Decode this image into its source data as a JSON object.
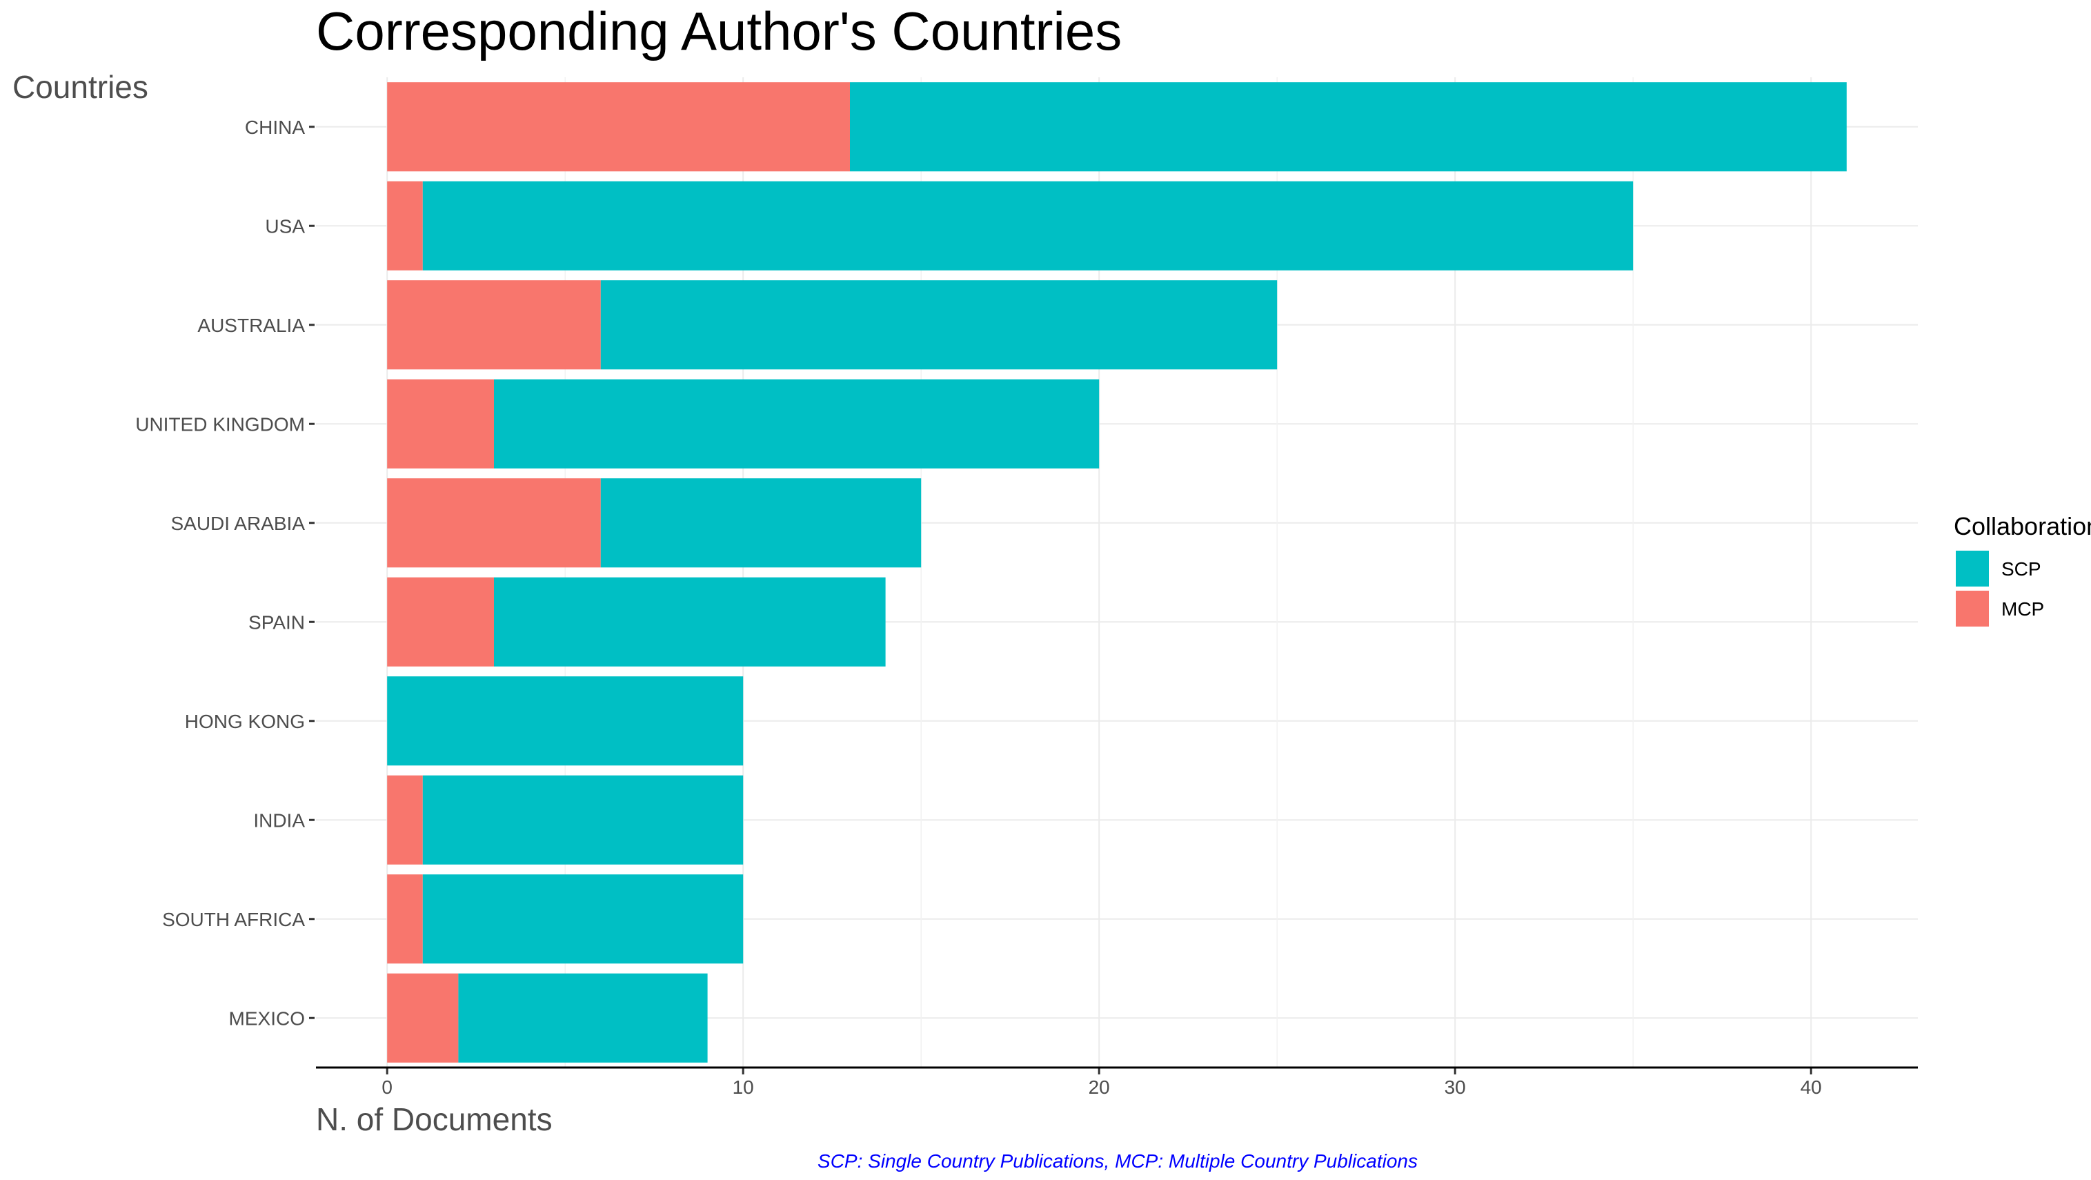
{
  "chart_data": {
    "type": "bar",
    "orientation": "horizontal",
    "stacked": true,
    "title": "Corresponding Author's Countries",
    "xlabel": "N. of Documents",
    "ylabel": "Countries",
    "caption": "SCP: Single Country Publications, MCP: Multiple Country Publications",
    "categories": [
      "CHINA",
      "USA",
      "AUSTRALIA",
      "UNITED KINGDOM",
      "SAUDI ARABIA",
      "SPAIN",
      "HONG KONG",
      "INDIA",
      "SOUTH AFRICA",
      "MEXICO"
    ],
    "series": [
      {
        "name": "MCP",
        "color": "#F8766D",
        "values": [
          13,
          1,
          6,
          3,
          6,
          3,
          0,
          1,
          1,
          2
        ]
      },
      {
        "name": "SCP",
        "color": "#00BFC4",
        "values": [
          28,
          34,
          19,
          17,
          9,
          11,
          10,
          9,
          9,
          7
        ]
      }
    ],
    "xlim": [
      -2,
      43
    ],
    "xticks": [
      0,
      10,
      20,
      30,
      40
    ],
    "grid": true,
    "legend": {
      "title": "Collaboration",
      "placement": "right",
      "entries": [
        {
          "name": "SCP",
          "color": "#00BFC4"
        },
        {
          "name": "MCP",
          "color": "#F8766D"
        }
      ]
    }
  }
}
